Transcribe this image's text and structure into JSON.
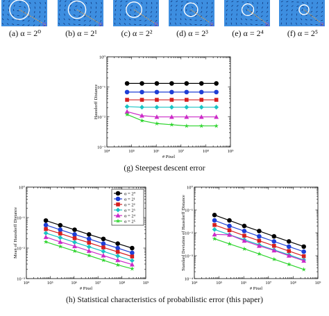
{
  "thumbnails": [
    {
      "label": "(a)  α = 2⁰"
    },
    {
      "label": "(b)  α = 2¹"
    },
    {
      "label": "(c)  α = 2²"
    },
    {
      "label": "(d)  α = 2³"
    },
    {
      "label": "(e)  α = 2⁴"
    },
    {
      "label": "(f)  α = 2⁵"
    }
  ],
  "captions": {
    "g": "(g)  Steepest descent error",
    "h": "(h)  Statistical characteristics of probabilistic error (this paper)"
  },
  "colors": {
    "series": [
      "#000000",
      "#1f3fd6",
      "#d61f1f",
      "#19c4c4",
      "#cc2ac8",
      "#2bd42b"
    ],
    "thumb_bg": "#3d8ee0"
  },
  "chart_data": [
    {
      "type": "line",
      "id": "g",
      "xlabel": "# Pixel",
      "ylabel": "Hausdorff Distance",
      "xscale": "log",
      "yscale": "log",
      "xlim": [
        10000,
        1000000000
      ],
      "ylim": [
        0.001,
        1
      ],
      "xticks": [
        "10⁴",
        "10⁵",
        "10⁶",
        "10⁷",
        "10⁸",
        "10⁹"
      ],
      "yticks": [
        "10⁻³",
        "10⁻²",
        "10⁻¹",
        "10⁰"
      ],
      "x": [
        65536,
        262144,
        1048576,
        4194304,
        16777216,
        67108864,
        268435456
      ],
      "series": [
        {
          "name": "α = 2⁰",
          "marker": "circle",
          "values": [
            0.13,
            0.13,
            0.13,
            0.13,
            0.13,
            0.13,
            0.13
          ]
        },
        {
          "name": "α = 2¹",
          "marker": "circle",
          "values": [
            0.067,
            0.067,
            0.067,
            0.067,
            0.067,
            0.067,
            0.067
          ]
        },
        {
          "name": "α = 2²",
          "marker": "square",
          "values": [
            0.037,
            0.037,
            0.037,
            0.037,
            0.037,
            0.037,
            0.037
          ]
        },
        {
          "name": "α = 2³",
          "marker": "diamond",
          "values": [
            0.022,
            0.021,
            0.021,
            0.021,
            0.021,
            0.021,
            0.021
          ]
        },
        {
          "name": "α = 2⁴",
          "marker": "triangle",
          "values": [
            0.015,
            0.011,
            0.01,
            0.01,
            0.01,
            0.01,
            0.01
          ]
        },
        {
          "name": "α = 2⁵",
          "marker": "star",
          "values": [
            0.012,
            0.0075,
            0.006,
            0.0055,
            0.005,
            0.005,
            0.005
          ]
        }
      ]
    },
    {
      "type": "line",
      "id": "h-left",
      "xlabel": "# Pixel",
      "ylabel": "Mean of Hausdorff Distance",
      "xscale": "log",
      "yscale": "log",
      "xlim": [
        10000,
        1000000000
      ],
      "ylim": [
        0.001,
        1
      ],
      "xticks": [
        "10⁴",
        "10⁵",
        "10⁶",
        "10⁷",
        "10⁸",
        "10⁹"
      ],
      "yticks": [
        "10⁻³",
        "10⁻²",
        "10⁻¹",
        "10⁰"
      ],
      "legend": "top-right",
      "x": [
        65536,
        262144,
        1048576,
        4194304,
        16777216,
        67108864,
        268435456
      ],
      "series": [
        {
          "name": "α = 2⁰",
          "marker": "circle",
          "values": [
            0.08,
            0.056,
            0.04,
            0.028,
            0.02,
            0.014,
            0.01
          ]
        },
        {
          "name": "α = 2¹",
          "marker": "circle",
          "values": [
            0.057,
            0.04,
            0.028,
            0.02,
            0.014,
            0.01,
            0.007
          ]
        },
        {
          "name": "α = 2²",
          "marker": "square",
          "values": [
            0.042,
            0.03,
            0.021,
            0.015,
            0.0105,
            0.0075,
            0.0053
          ]
        },
        {
          "name": "α = 2³",
          "marker": "diamond",
          "values": [
            0.031,
            0.022,
            0.0155,
            0.011,
            0.0078,
            0.0055,
            0.0039
          ]
        },
        {
          "name": "α = 2⁴",
          "marker": "triangle",
          "values": [
            0.023,
            0.016,
            0.0115,
            0.0081,
            0.0057,
            0.004,
            0.0029
          ]
        },
        {
          "name": "α = 2⁵",
          "marker": "star",
          "values": [
            0.016,
            0.0113,
            0.008,
            0.0057,
            0.004,
            0.0028,
            0.0021
          ]
        }
      ]
    },
    {
      "type": "line",
      "id": "h-right",
      "xlabel": "# Pixel",
      "ylabel": "Standard Deviation of Hausdorff Distance",
      "xscale": "log",
      "yscale": "log",
      "xlim": [
        10000,
        1000000000
      ],
      "ylim": [
        0.0001,
        1
      ],
      "xticks": [
        "10⁴",
        "10⁵",
        "10⁶",
        "10⁷",
        "10⁸",
        "10⁹"
      ],
      "yticks": [
        "10⁻⁴",
        "10⁻³",
        "10⁻²",
        "10⁻¹",
        "10⁰"
      ],
      "x": [
        65536,
        262144,
        1048576,
        4194304,
        16777216,
        67108864,
        268435456
      ],
      "series": [
        {
          "name": "α = 2⁰",
          "marker": "circle",
          "values": [
            0.06,
            0.035,
            0.02,
            0.012,
            0.007,
            0.0042,
            0.0025
          ]
        },
        {
          "name": "α = 2¹",
          "marker": "circle",
          "values": [
            0.035,
            0.02,
            0.012,
            0.007,
            0.0042,
            0.0025,
            0.0015
          ]
        },
        {
          "name": "α = 2²",
          "marker": "square",
          "values": [
            0.022,
            0.013,
            0.0075,
            0.0045,
            0.0027,
            0.0016,
            0.00095
          ]
        },
        {
          "name": "α = 2³",
          "marker": "diamond",
          "values": [
            0.014,
            0.0083,
            0.005,
            0.003,
            0.0018,
            0.0011,
            0.00065
          ]
        },
        {
          "name": "α = 2⁴",
          "marker": "triangle",
          "values": [
            0.0085,
            0.0082,
            0.0045,
            0.0027,
            0.0017,
            0.001,
            0.0006
          ]
        },
        {
          "name": "α = 2⁵",
          "marker": "star",
          "values": [
            0.0055,
            0.0033,
            0.002,
            0.0012,
            0.0007,
            0.00042,
            0.00025
          ]
        }
      ]
    }
  ]
}
